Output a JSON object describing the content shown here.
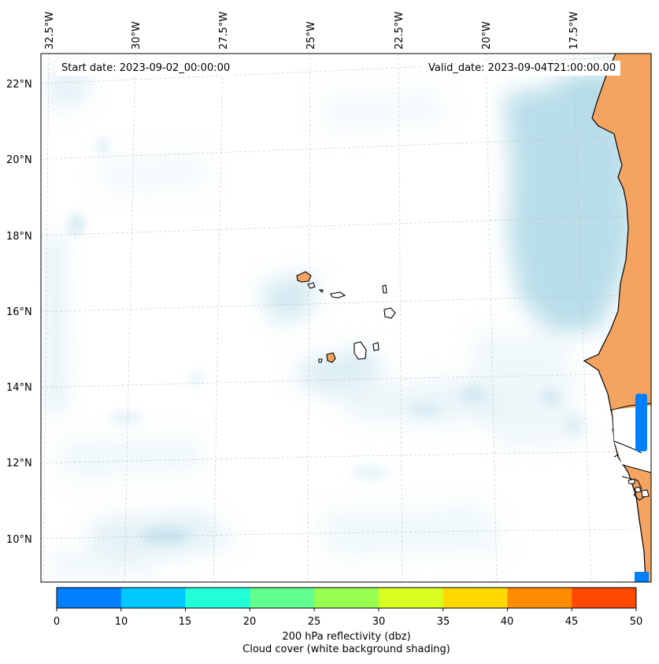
{
  "map": {
    "start_date_text": "Start date: 2023-09-02_00:00:00",
    "valid_date_text": "Valid_date: 2023-09-04T21:00:00.00",
    "lon_labels": [
      "32.5°W",
      "30°W",
      "27.5°W",
      "25°W",
      "22.5°W",
      "20°W",
      "17.5°W"
    ],
    "lat_labels": [
      "22°N",
      "20°N",
      "18°N",
      "16°N",
      "14°N",
      "12°N",
      "10°N"
    ],
    "land_color": "#f4a460",
    "cloud_color": "#add8e6",
    "coastline_color": "#000000",
    "reflectivity_patch_color": "#0080ff"
  },
  "colorbar": {
    "ticks": [
      "0",
      "10",
      "15",
      "20",
      "25",
      "30",
      "35",
      "40",
      "45",
      "50"
    ],
    "colors": [
      "#0080ff",
      "#00c8ff",
      "#20ffd8",
      "#60ff90",
      "#98ff50",
      "#d8ff20",
      "#ffd800",
      "#ff8c00",
      "#ff4800"
    ],
    "label_line1": "200 hPa reflectivity (dbz)",
    "label_line2": "Cloud cover (white background shading)"
  }
}
